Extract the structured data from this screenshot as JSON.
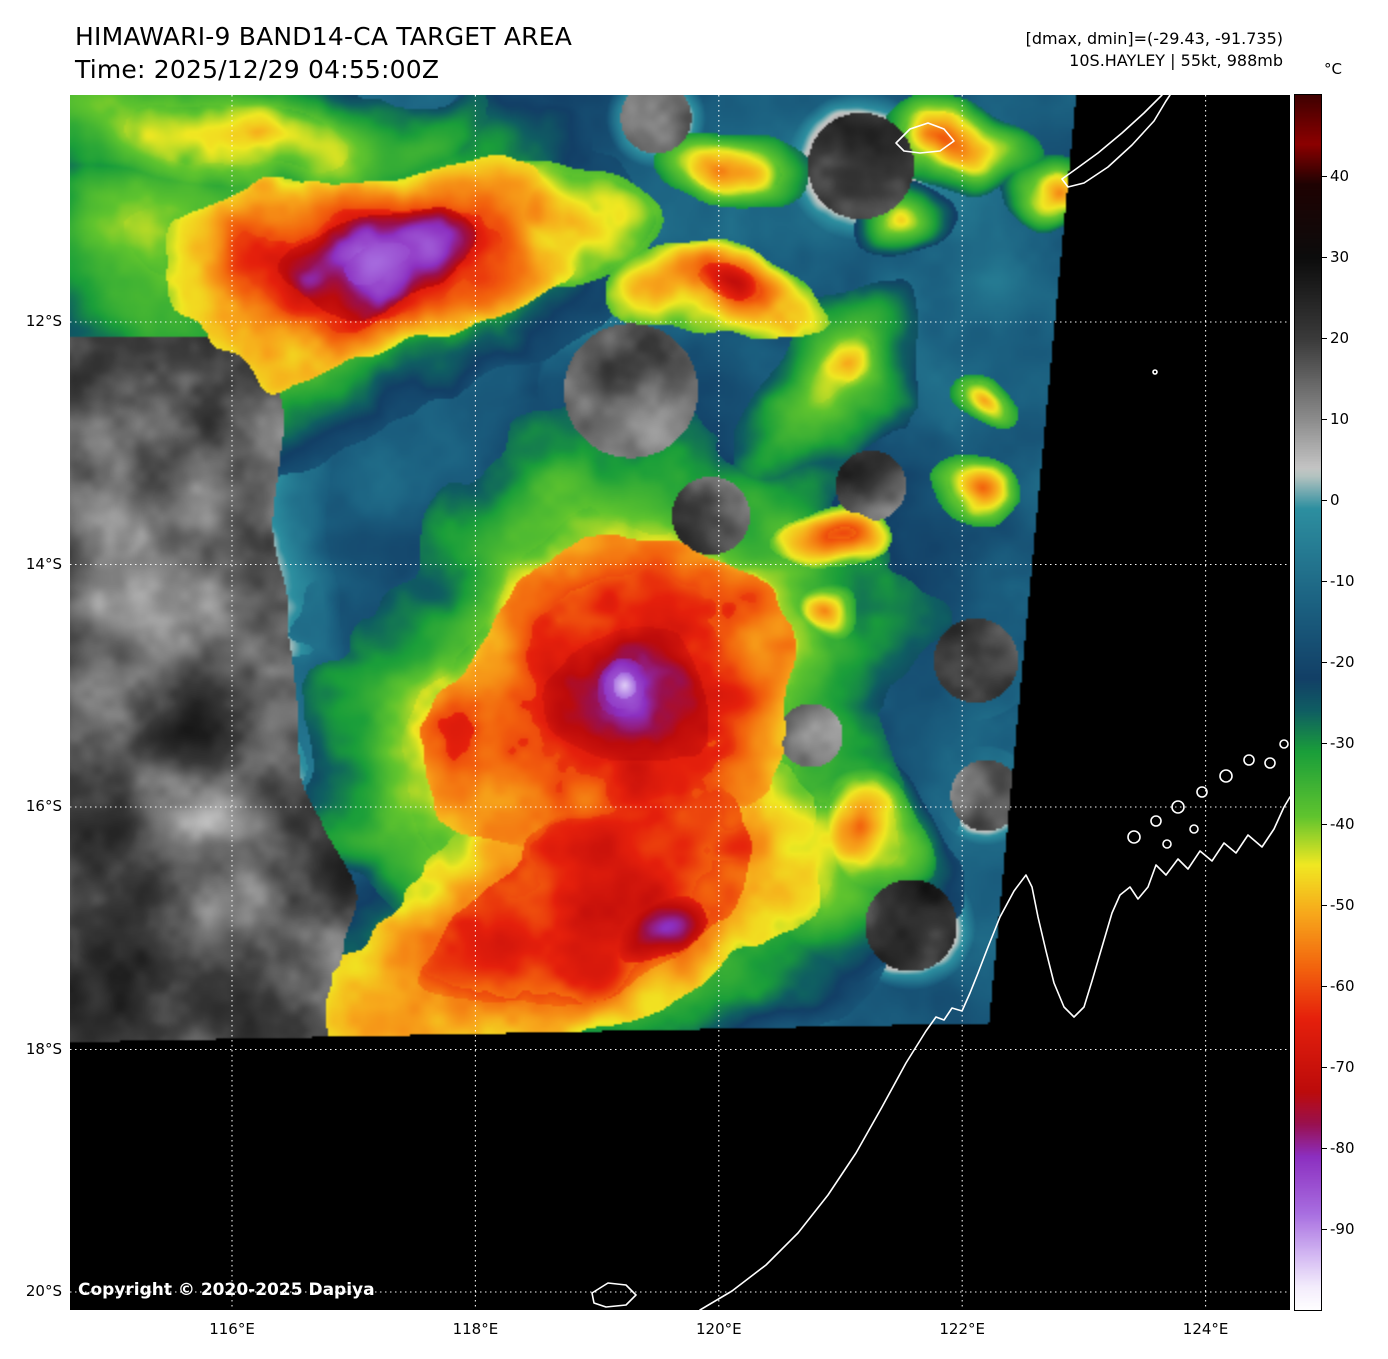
{
  "header": {
    "title": "HIMAWARI-9 BAND14-CA TARGET AREA",
    "time": "Time: 2025/12/29 04:55:00Z",
    "dmax_dmin": "[dmax, dmin]=(-29.43, -91.735)",
    "storm_info": "10S.HAYLEY | 55kt, 988mb"
  },
  "colorbar": {
    "unit": "°C",
    "range": [
      50,
      -100
    ],
    "ticks": [
      "40",
      "30",
      "20",
      "10",
      "0",
      "-10",
      "-20",
      "-30",
      "-40",
      "-50",
      "-60",
      "-70",
      "-80",
      "-90"
    ]
  },
  "axes": {
    "lat_ticks": [
      {
        "label": "12°S",
        "value": 12
      },
      {
        "label": "14°S",
        "value": 14
      },
      {
        "label": "16°S",
        "value": 16
      },
      {
        "label": "18°S",
        "value": 18
      },
      {
        "label": "20°S",
        "value": 20
      }
    ],
    "lon_ticks": [
      {
        "label": "116°E",
        "value": 116
      },
      {
        "label": "118°E",
        "value": 118
      },
      {
        "label": "120°E",
        "value": 120
      },
      {
        "label": "122°E",
        "value": 122
      },
      {
        "label": "124°E",
        "value": 124
      }
    ]
  },
  "footer": {
    "copyright": "Copyright © 2020-2025 Dapiya"
  }
}
